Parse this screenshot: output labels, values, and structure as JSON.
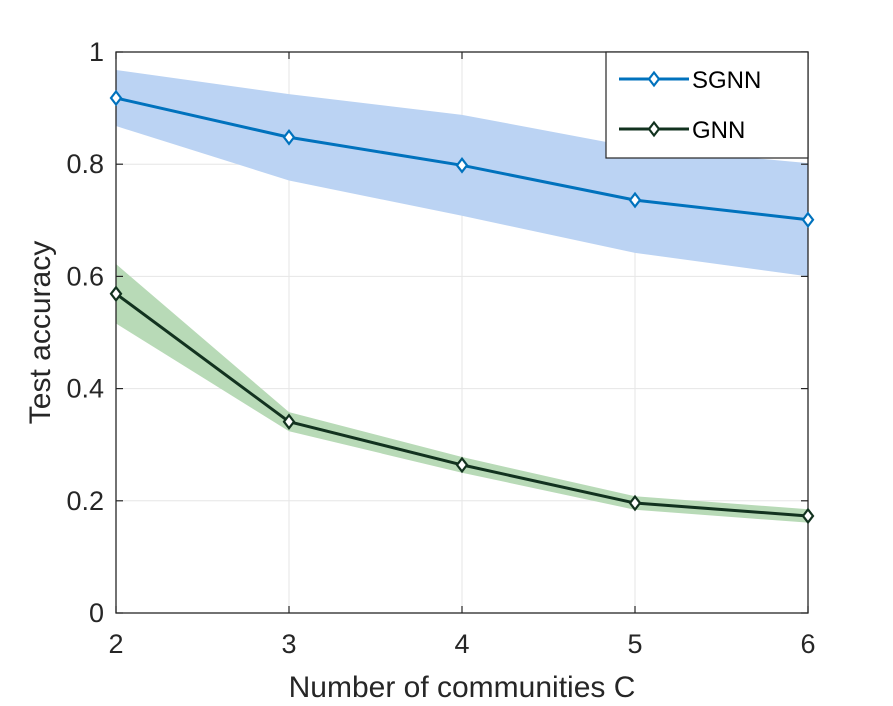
{
  "chart_data": {
    "type": "line",
    "title": "",
    "xlabel": "Number of communities C",
    "ylabel": "Test accuracy",
    "x": [
      2,
      3,
      4,
      5,
      6
    ],
    "xlim": [
      2,
      6
    ],
    "ylim": [
      0,
      1
    ],
    "xticks": [
      "2",
      "3",
      "4",
      "5",
      "6"
    ],
    "yticks": [
      "0",
      "0.2",
      "0.4",
      "0.6",
      "0.8",
      "1"
    ],
    "grid": true,
    "legend_position": "top-right",
    "series": [
      {
        "name": "SGNN",
        "values": [
          0.918,
          0.848,
          0.798,
          0.736,
          0.701
        ],
        "band_upper": [
          0.968,
          0.925,
          0.888,
          0.83,
          0.802
        ],
        "band_lower": [
          0.868,
          0.771,
          0.708,
          0.642,
          0.6
        ],
        "line_color": "#0072BD",
        "band_color": "#BBD3F3",
        "marker": "diamond"
      },
      {
        "name": "GNN",
        "values": [
          0.569,
          0.341,
          0.264,
          0.196,
          0.173
        ],
        "band_upper": [
          0.622,
          0.358,
          0.278,
          0.208,
          0.185
        ],
        "band_lower": [
          0.516,
          0.324,
          0.25,
          0.184,
          0.161
        ],
        "line_color": "#12321F",
        "band_color": "#B8DAB7",
        "marker": "diamond"
      }
    ]
  }
}
